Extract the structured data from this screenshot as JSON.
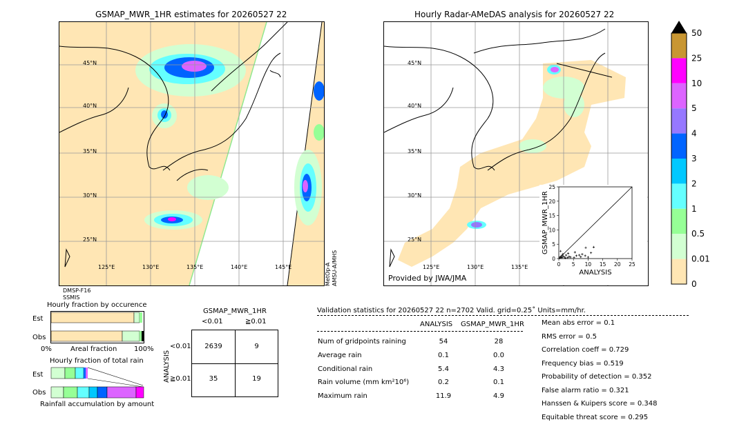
{
  "left_map": {
    "title": "GSMAP_MWR_1HR estimates for 20260527 22",
    "lat_labels": [
      "45°N",
      "40°N",
      "35°N",
      "30°N",
      "25°N"
    ],
    "lon_labels": [
      "125°E",
      "130°E",
      "135°E",
      "140°E",
      "145°E"
    ],
    "sensor_left": [
      "DMSP-F16",
      "SSMIS"
    ],
    "sensor_right": [
      "MetOp-A",
      "AMSU-A/MHS"
    ]
  },
  "right_map": {
    "title": "Hourly Radar-AMeDAS analysis for 20260527 22",
    "lat_labels": [
      "45°N",
      "40°N",
      "35°N",
      "30°N",
      "25°N"
    ],
    "lon_labels": [
      "125°E",
      "130°E",
      "135°E"
    ],
    "credit": "Provided by JWA/JMA"
  },
  "colorbar": {
    "labels": [
      "50",
      "25",
      "10",
      "5",
      "4",
      "3",
      "2",
      "1",
      "0.5",
      "0.01",
      "0"
    ],
    "colors": [
      "#c89632",
      "#ff00ff",
      "#dc64ff",
      "#9678ff",
      "#0064ff",
      "#00c8ff",
      "#64ffff",
      "#96ff96",
      "#d2ffd2",
      "#ffe6b4"
    ],
    "over_color": "#000000"
  },
  "fraction_occurrence": {
    "title": "Hourly fraction by occurence",
    "row_labels": [
      "Est",
      "Obs"
    ],
    "axis_left": "0%",
    "axis_mid": "Areal fraction",
    "axis_right": "100%"
  },
  "fraction_total": {
    "title": "Hourly fraction of total rain",
    "row_labels": [
      "Est",
      "Obs"
    ],
    "axis_label": "Rainfall accumulation by amount"
  },
  "contingency": {
    "title": "GSMAP_MWR_1HR",
    "col_headers": [
      "<0.01",
      "≧0.01"
    ],
    "row_axis": "ANALYSIS",
    "row_headers": [
      "<0.01",
      "≧0.01"
    ],
    "cells": [
      [
        "2639",
        "9"
      ],
      [
        "35",
        "19"
      ]
    ]
  },
  "validation": {
    "header": "Validation statistics for 20260527 22  n=2702 Valid. grid=0.25˚ Units=mm/hr.",
    "col_headers": [
      "ANALYSIS",
      "GSMAP_MWR_1HR"
    ],
    "rows": [
      {
        "label": "Num of gridpoints raining",
        "analysis": "54",
        "gsmap": "28"
      },
      {
        "label": "Average rain",
        "analysis": "0.1",
        "gsmap": "0.0"
      },
      {
        "label": "Conditional rain",
        "analysis": "5.4",
        "gsmap": "4.3"
      },
      {
        "label": "Rain volume (mm km²10⁶)",
        "analysis": "0.2",
        "gsmap": "0.1"
      },
      {
        "label": "Maximum rain",
        "analysis": "11.9",
        "gsmap": "4.9"
      }
    ],
    "scores": [
      "Mean abs error =    0.1",
      "RMS error =    0.5",
      "Correlation coeff =  0.729",
      "Frequency bias =  0.519",
      "Probability of detection =  0.352",
      "False alarm ratio =  0.321",
      "Hanssen & Kuipers score =  0.348",
      "Equitable threat score =  0.295"
    ]
  },
  "chart_data": {
    "type": "scatter",
    "xlabel": "ANALYSIS",
    "ylabel": "GSMAP_MWR_1HR",
    "xlim": [
      0,
      25
    ],
    "ylim": [
      0,
      25
    ],
    "ticks": [
      "0",
      "5",
      "10",
      "15",
      "20",
      "25"
    ],
    "points": [
      [
        0.3,
        0.2
      ],
      [
        0.5,
        0.6
      ],
      [
        0.8,
        0.3
      ],
      [
        1.0,
        1.0
      ],
      [
        1.2,
        0.4
      ],
      [
        1.5,
        0.8
      ],
      [
        2.0,
        0.5
      ],
      [
        2.5,
        1.2
      ],
      [
        3.0,
        0.3
      ],
      [
        3.5,
        0.7
      ],
      [
        4.0,
        0.5
      ],
      [
        0.6,
        2.6
      ],
      [
        1.4,
        1.6
      ],
      [
        5.2,
        0.4
      ],
      [
        6.0,
        1.0
      ],
      [
        7.0,
        1.2
      ],
      [
        7.5,
        0.6
      ],
      [
        8.0,
        1.5
      ],
      [
        9.0,
        1.0
      ],
      [
        9.2,
        3.8
      ],
      [
        10.0,
        0.5
      ],
      [
        11.0,
        2.0
      ],
      [
        11.9,
        4.0
      ],
      [
        5.5,
        2.2
      ],
      [
        2.2,
        0.2
      ],
      [
        3.2,
        1.8
      ]
    ]
  }
}
